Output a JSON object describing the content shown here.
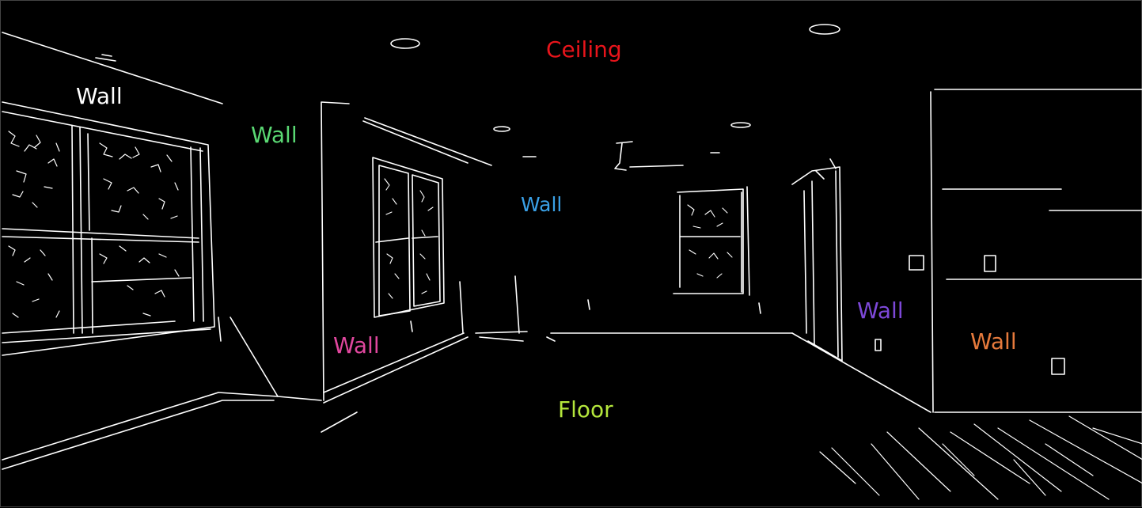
{
  "labels": [
    {
      "id": "ceiling",
      "text": "Ceiling",
      "color": "#e8141b"
    },
    {
      "id": "wall_1",
      "text": "Wall",
      "color": "#ffffff"
    },
    {
      "id": "wall_2",
      "text": "Wall",
      "color": "#5ad873"
    },
    {
      "id": "wall_3",
      "text": "Wall",
      "color": "#3aa0e6"
    },
    {
      "id": "wall_4",
      "text": "Wall",
      "color": "#e0479e"
    },
    {
      "id": "wall_5",
      "text": "Wall",
      "color": "#7d48d8"
    },
    {
      "id": "wall_6",
      "text": "Wall",
      "color": "#e67a3c"
    },
    {
      "id": "floor",
      "text": "Floor",
      "color": "#b4e63c"
    }
  ],
  "scene": {
    "background": "#000000",
    "edge_color": "#ffffff"
  }
}
